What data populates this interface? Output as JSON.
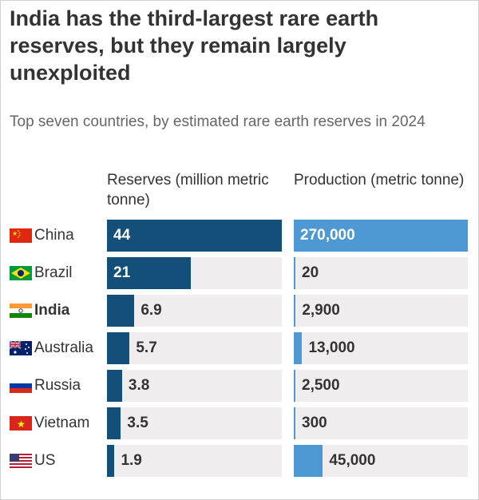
{
  "title": "India has the third-largest rare earth reserves, but they remain largely unexploited",
  "subtitle": "Top seven countries, by estimated rare earth reserves in 2024",
  "chart_data": {
    "type": "bar",
    "orientation": "horizontal",
    "categories": [
      "China",
      "Brazil",
      "India",
      "Australia",
      "Russia",
      "Vietnam",
      "US"
    ],
    "highlighted_category": "India",
    "series": [
      {
        "name": "Reserves (million metric tonne)",
        "values": [
          44,
          21,
          6.9,
          5.7,
          3.8,
          3.5,
          1.9
        ],
        "labels": [
          "44",
          "21",
          "6.9",
          "5.7",
          "3.8",
          "3.5",
          "1.9"
        ],
        "color": "#144f79",
        "xlim": [
          0,
          44
        ]
      },
      {
        "name": "Production (metric tonne)",
        "values": [
          270000,
          20,
          2900,
          13000,
          2500,
          300,
          45000
        ],
        "labels": [
          "270,000",
          "20",
          "2,900",
          "13,000",
          "2,500",
          "300",
          "45,000"
        ],
        "color": "#4e99d4",
        "xlim": [
          0,
          270000
        ]
      }
    ],
    "grid": false,
    "legend": "none"
  },
  "flags": [
    "china-flag-icon",
    "brazil-flag-icon",
    "india-flag-icon",
    "australia-flag-icon",
    "russia-flag-icon",
    "vietnam-flag-icon",
    "us-flag-icon"
  ],
  "colors": {
    "background_track": "#efeded",
    "text": "#333333",
    "subtitle": "#666666"
  }
}
